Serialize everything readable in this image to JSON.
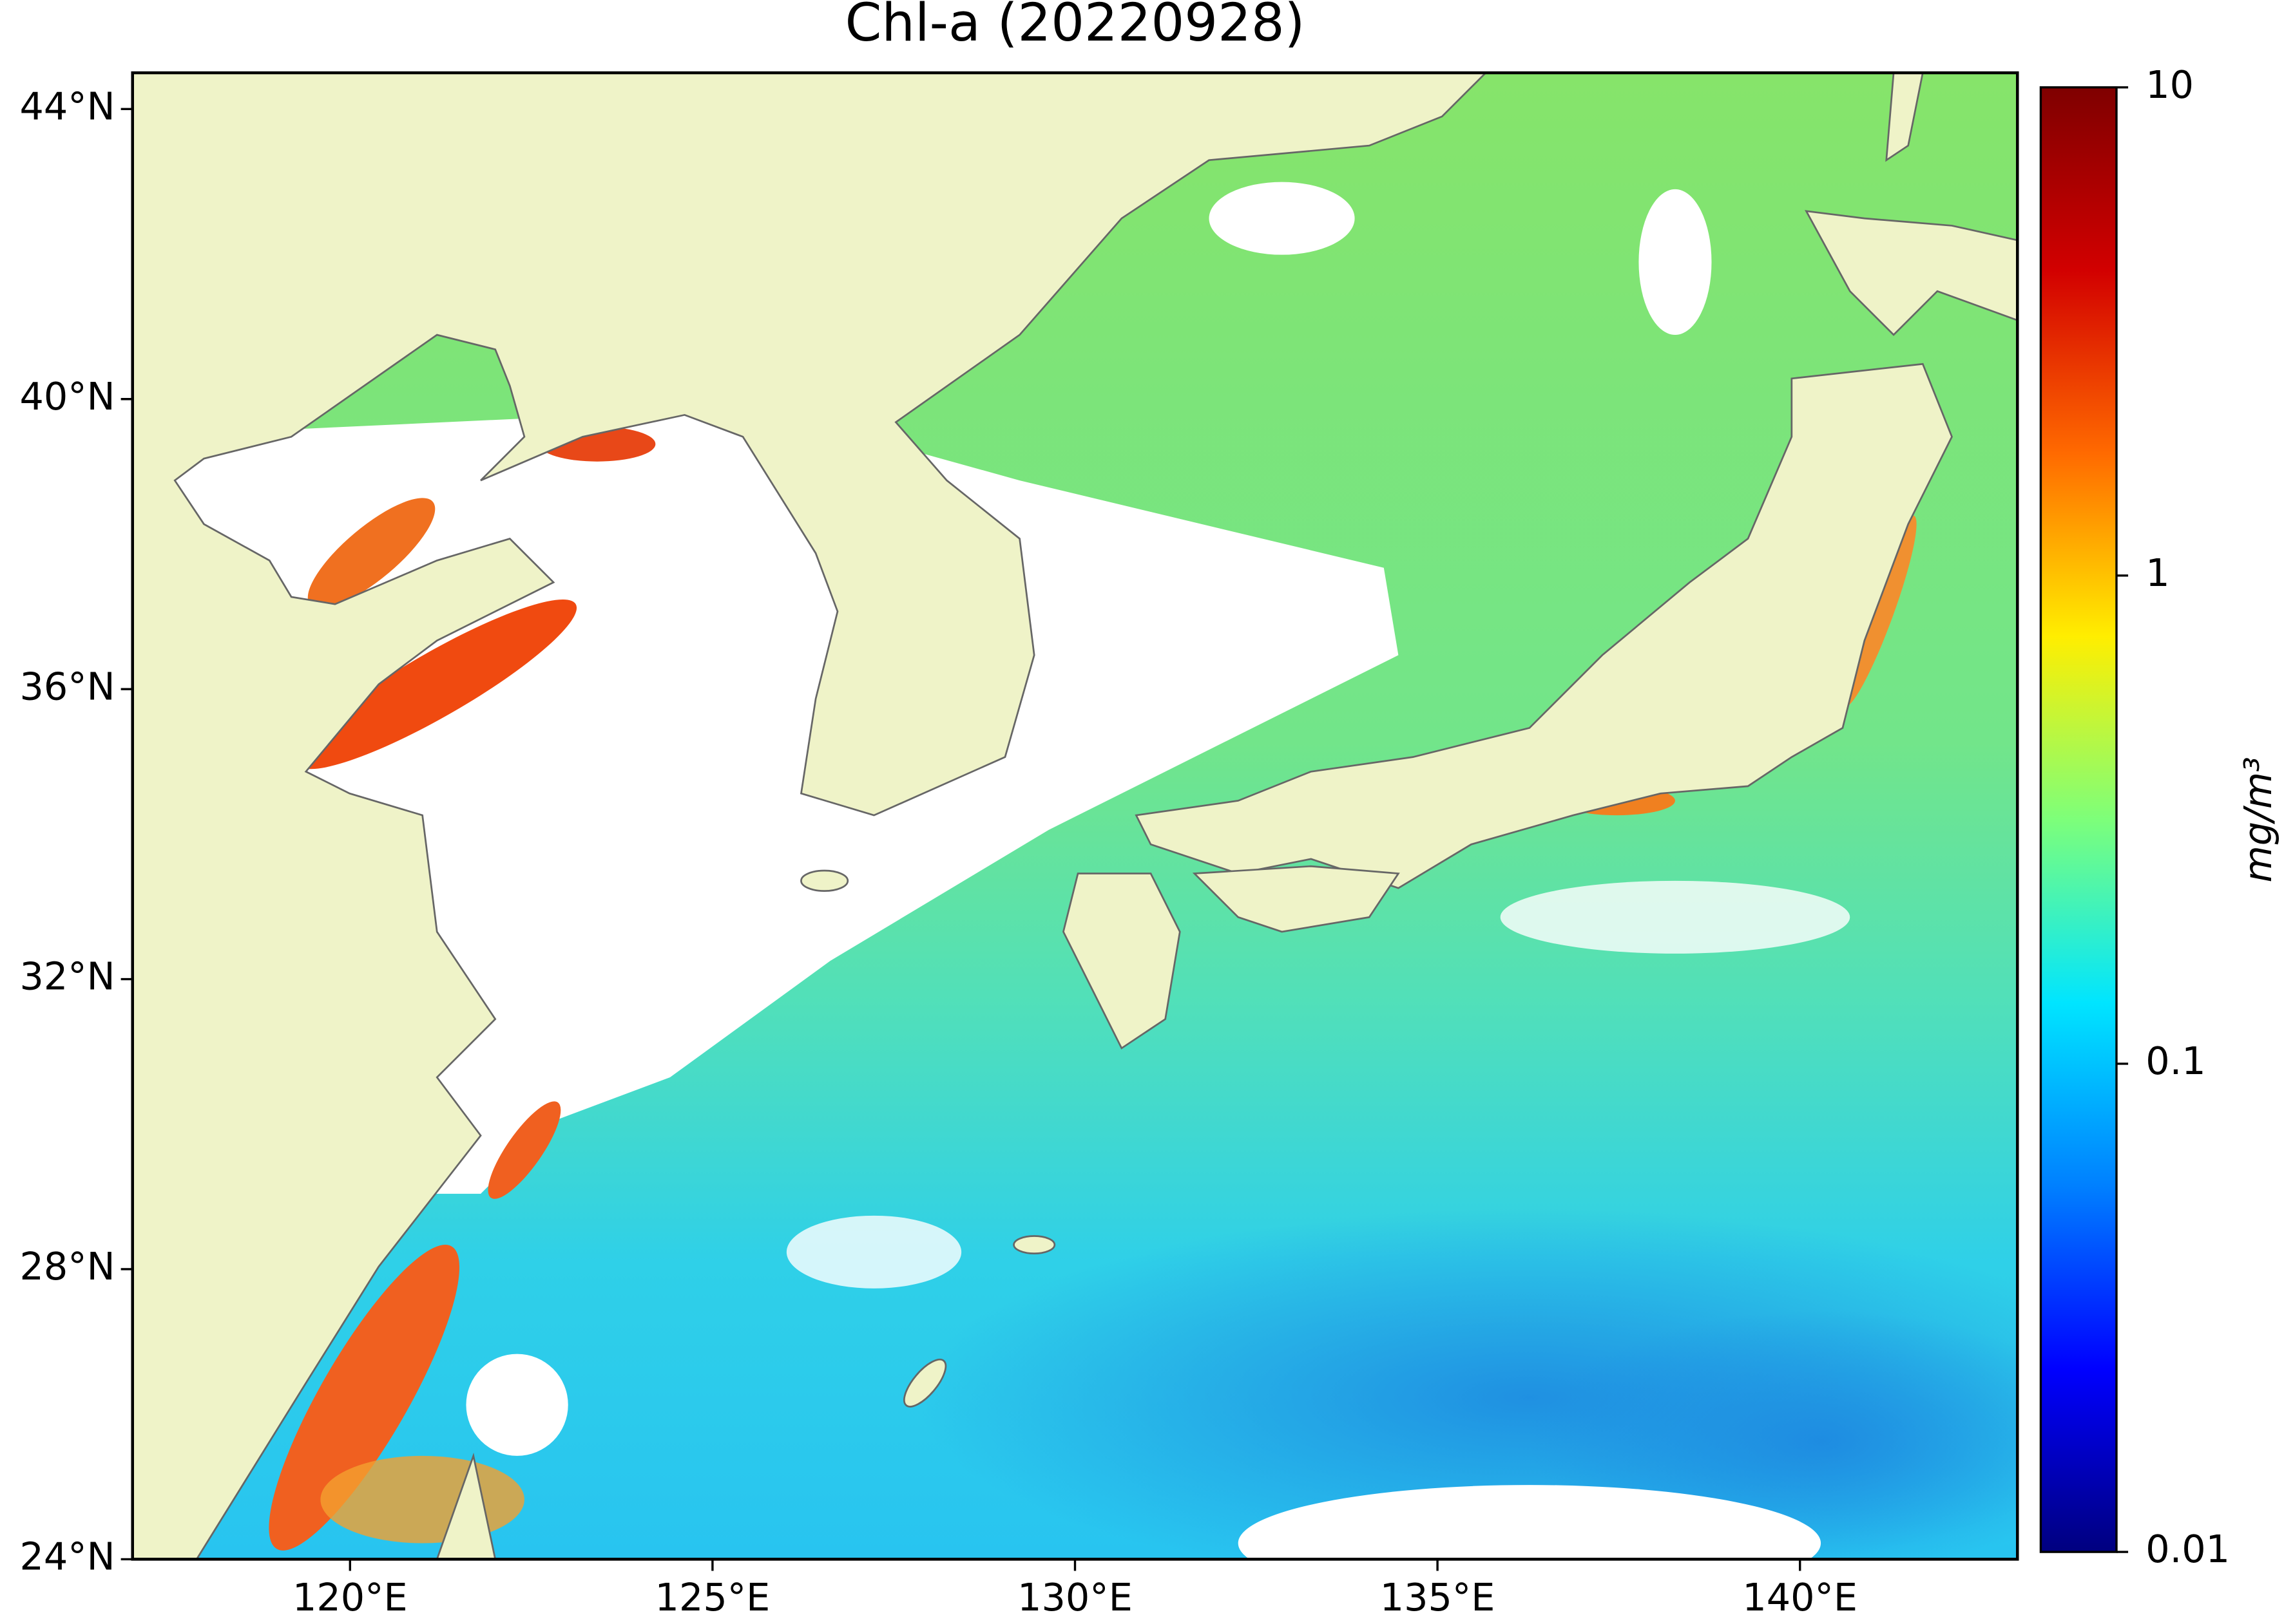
{
  "chart_data": {
    "type": "map",
    "title": "Chl-a (20220928)",
    "xlim": [
      117,
      143
    ],
    "ylim": [
      24,
      44.5
    ],
    "xticks": [
      {
        "value": 120,
        "label": "120°E"
      },
      {
        "value": 125,
        "label": "125°E"
      },
      {
        "value": 130,
        "label": "130°E"
      },
      {
        "value": 135,
        "label": "135°E"
      },
      {
        "value": 140,
        "label": "140°E"
      }
    ],
    "yticks": [
      {
        "value": 24,
        "label": "24°N"
      },
      {
        "value": 28,
        "label": "28°N"
      },
      {
        "value": 32,
        "label": "32°N"
      },
      {
        "value": 36,
        "label": "36°N"
      },
      {
        "value": 40,
        "label": "40°N"
      },
      {
        "value": 44,
        "label": "44°N"
      }
    ],
    "colorbar": {
      "label": "mg/m³",
      "scale": "log",
      "lim": [
        0.01,
        10
      ],
      "ticks": [
        0.01,
        0.1,
        1,
        10
      ],
      "colors": [
        "#00007f",
        "#0000ff",
        "#0080ff",
        "#00e5ff",
        "#7dff7a",
        "#ffee00",
        "#ff6a00",
        "#d20000",
        "#7f0000"
      ]
    }
  }
}
